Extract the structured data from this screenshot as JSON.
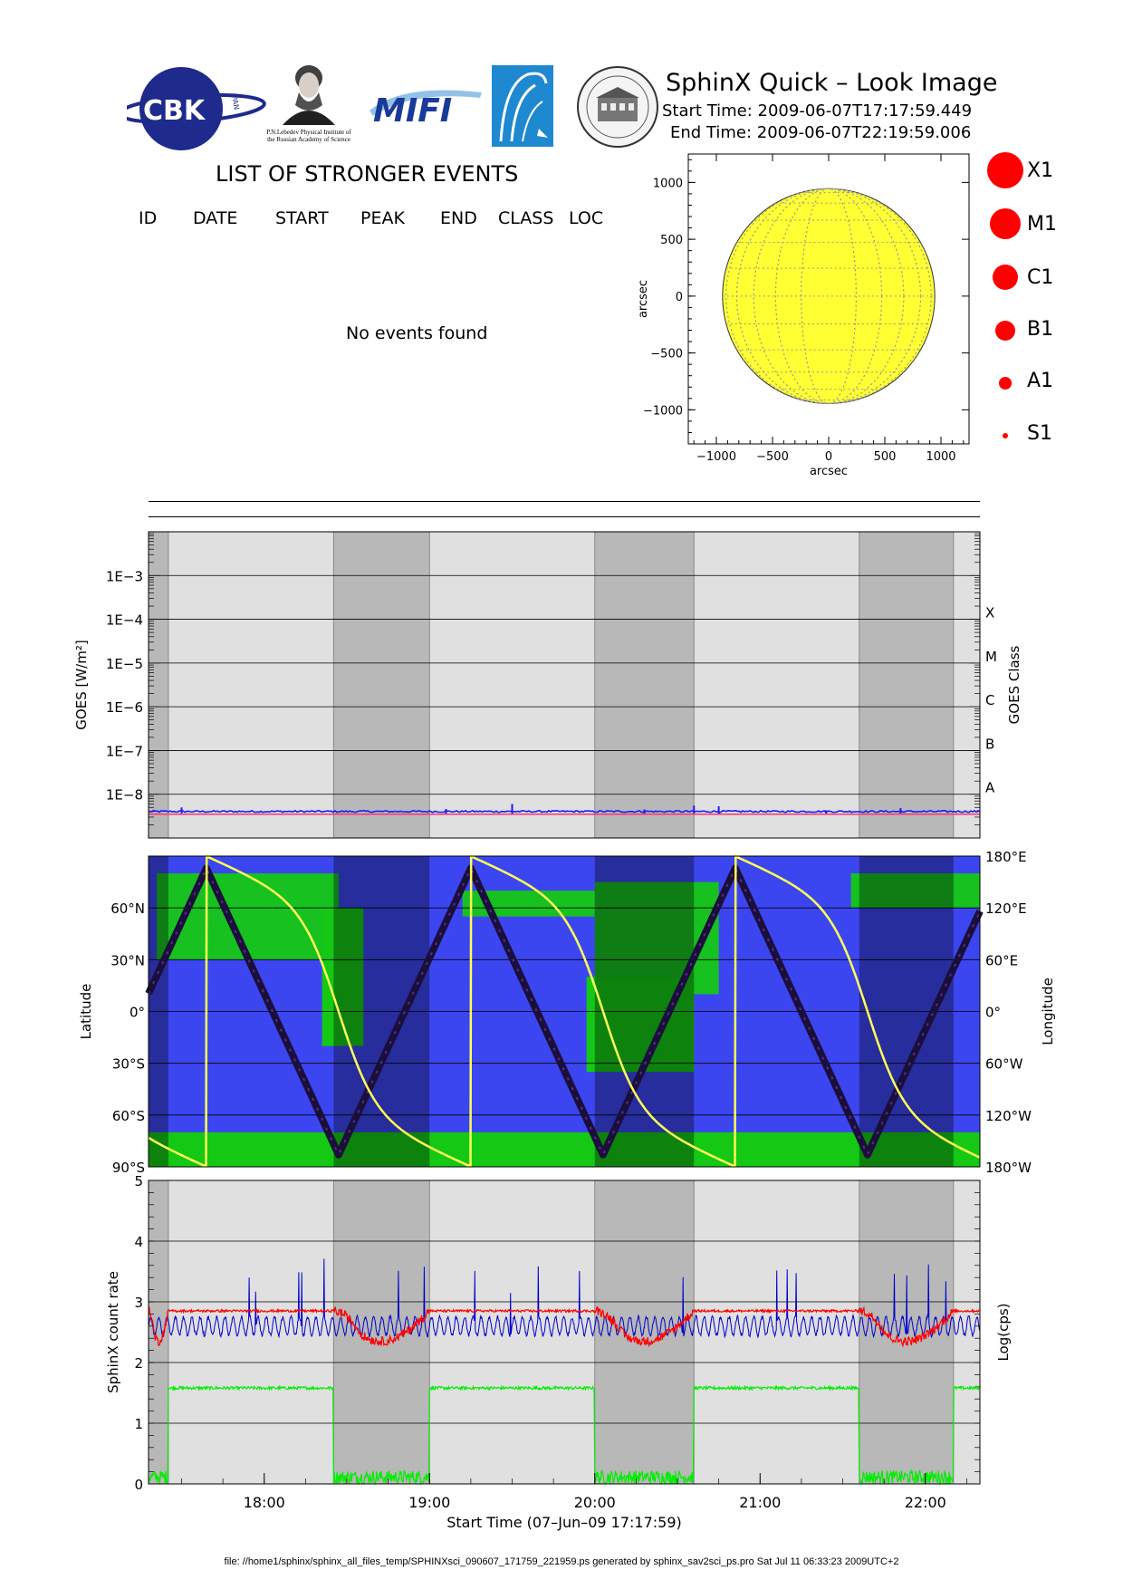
{
  "header": {
    "title": "SphinX Quick – Look Image",
    "start_time": "Start Time: 2009-06-07T17:17:59.449",
    "end_time": "End Time: 2009-06-07T22:19:59.006"
  },
  "logos": {
    "cbk_text": "CBK",
    "cbk_sub": "PAN",
    "lebedev_caption": "P.N.Lebedev Physical Institute of the Russian Academy of Science",
    "mephi_text": "MIFI"
  },
  "events": {
    "title": "LIST OF STRONGER EVENTS",
    "columns": [
      "ID",
      "DATE",
      "START",
      "PEAK",
      "END",
      "CLASS",
      "LOC"
    ],
    "empty_message": "No events found"
  },
  "legend": {
    "items": [
      {
        "label": "X1"
      },
      {
        "label": "M1"
      },
      {
        "label": "C1"
      },
      {
        "label": "B1"
      },
      {
        "label": "A1"
      },
      {
        "label": "S1"
      }
    ],
    "color": "#ff0000"
  },
  "footer": "file: //home1/sphinx/sphinx_all_files_temp/SPHINXsci_090607_171759_221959.ps generated by sphinx_sav2sci_ps.pro Sat Jul 11 06:33:23 2009UTC+2",
  "colors": {
    "light_bg": "#e0e0e0",
    "dark_band": "#b8b8b8",
    "goes_line": "#1a1aff",
    "goes_baseline": "#ff3366",
    "sun": "#ffff33",
    "map_blue": "#3c46f0",
    "map_green": "#14c814",
    "track_yellow": "#ffff55",
    "sphinx_red": "#ff0000",
    "sphinx_blue": "#0000cc",
    "sphinx_green": "#00ee00"
  },
  "chart_data": [
    {
      "type": "scatter",
      "name": "solar-disk",
      "xlabel": "arcsec",
      "ylabel": "arcsec",
      "xlim": [
        -1250,
        1250
      ],
      "ylim": [
        -1300,
        1250
      ],
      "x_ticks": [
        "−1000",
        "−500",
        "0",
        "500",
        "1000"
      ],
      "x_tick_values": [
        -1000,
        -500,
        0,
        500,
        1000
      ],
      "y_ticks": [
        "1000",
        "500",
        "0",
        "−500",
        "−1000"
      ],
      "y_tick_values": [
        1000,
        500,
        0,
        -500,
        -1000
      ],
      "disk_radius_arcsec": 945,
      "points": []
    },
    {
      "type": "line",
      "name": "goes-flux",
      "ylabel": "GOES [W/m²]",
      "right_label": "GOES Class",
      "log_scale": true,
      "ylim": [
        1e-09,
        0.01
      ],
      "y_ticks": [
        "1E−3",
        "1E−4",
        "1E−5",
        "1E−6",
        "1E−7",
        "1E−8"
      ],
      "y_tick_values": [
        -3,
        -4,
        -5,
        -6,
        -7,
        -8
      ],
      "class_labels": [
        "X",
        "M",
        "C",
        "B",
        "A"
      ],
      "class_values": [
        -4,
        -5,
        -6,
        -7,
        -8
      ],
      "xlim_hours": [
        17.3,
        22.33
      ],
      "baseline_flux": 3.5e-09,
      "spikes": [
        [
          17.5,
          5e-09
        ],
        [
          19.1,
          4.6e-09
        ],
        [
          19.5,
          6e-09
        ],
        [
          20.3,
          4.5e-09
        ],
        [
          20.6,
          5.5e-09
        ],
        [
          20.75,
          5.3e-09
        ],
        [
          21.4,
          4.3e-09
        ],
        [
          21.85,
          4.8e-09
        ]
      ],
      "eclipse_bands_hours": [
        [
          17.3,
          17.42
        ],
        [
          18.42,
          19.0
        ],
        [
          20.0,
          20.6
        ],
        [
          21.6,
          22.17
        ]
      ]
    },
    {
      "type": "line",
      "name": "orbit-map",
      "ylabel": "Latitude",
      "right_label": "Longitude",
      "ylim": [
        -90,
        90
      ],
      "lat_ticks": [
        "60°N",
        "30°N",
        "0°",
        "30°S",
        "60°S",
        "90°S"
      ],
      "lat_tick_values": [
        60,
        30,
        0,
        -30,
        -60,
        -90
      ],
      "lon_ticks": [
        "180°E",
        "120°E",
        "60°E",
        "0°",
        "60°W",
        "120°W",
        "180°W"
      ],
      "lon_tick_values": [
        180,
        120,
        60,
        0,
        -60,
        -120,
        -180
      ],
      "orbit_period_hours": 1.6,
      "max_latitude": 83,
      "track_start_latitude": 20,
      "track_peak_hours": [
        17.65,
        19.23,
        20.83
      ]
    },
    {
      "type": "line",
      "name": "sphinx-count-rate",
      "ylabel": "SphinX count rate",
      "right_label": "Log(cps)",
      "xlabel": "Start Time (07–Jun–09 17:17:59)",
      "ylim": [
        0,
        5
      ],
      "y_ticks": [
        "5",
        "4",
        "3",
        "2",
        "1",
        "0"
      ],
      "y_tick_values": [
        5,
        4,
        3,
        2,
        1,
        0
      ],
      "x_ticks": [
        "18:00",
        "19:00",
        "20:00",
        "21:00",
        "22:00"
      ],
      "x_tick_values": [
        18,
        19,
        20,
        21,
        22
      ],
      "xlim_hours": [
        17.3,
        22.33
      ],
      "series": [
        {
          "color_key": "sphinx_red",
          "sunlit_level": 2.85,
          "eclipse_dip": 2.35
        },
        {
          "color_key": "sphinx_blue",
          "sunlit_level": 2.6,
          "oscillation": 0.15
        },
        {
          "color_key": "sphinx_green",
          "sunlit_level": 1.58,
          "eclipse_level": 0.15
        }
      ]
    }
  ]
}
